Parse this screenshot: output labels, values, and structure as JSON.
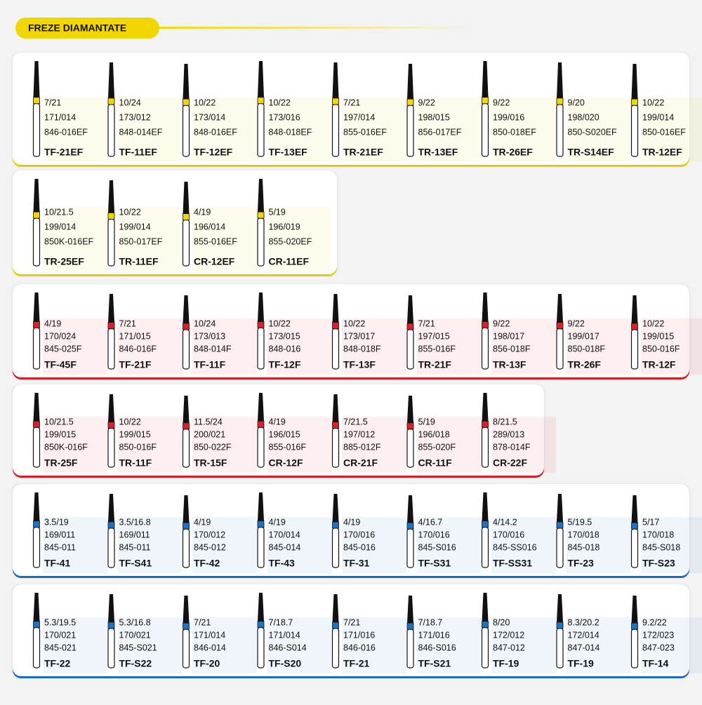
{
  "header": {
    "title": "FREZE DIAMANTATE"
  },
  "groups": [
    {
      "color": "#f2d600",
      "items": [
        [
          "7/21",
          "171/014",
          "846-016EF",
          "TF-21EF"
        ],
        [
          "10/24",
          "173/012",
          "848-014EF",
          "TF-11EF"
        ],
        [
          "10/22",
          "173/014",
          "848-016EF",
          "TF-12EF"
        ],
        [
          "10/22",
          "173/016",
          "848-018EF",
          "TF-13EF"
        ],
        [
          "7/21",
          "197/014",
          "855-016EF",
          "TR-21EF"
        ],
        [
          "9/22",
          "198/015",
          "856-017EF",
          "TR-13EF"
        ],
        [
          "9/22",
          "199/016",
          "850-018EF",
          "TR-26EF"
        ],
        [
          "9/20",
          "198/020",
          "850-S020EF",
          "TR-S14EF"
        ],
        [
          "10/22",
          "199/014",
          "850-016EF",
          "TR-12EF"
        ]
      ]
    },
    {
      "color": "#f2d600",
      "items": [
        [
          "10/21.5",
          "199/014",
          "850K-016EF",
          "TR-25EF"
        ],
        [
          "10/22",
          "199/014",
          "850-017EF",
          "TR-11EF"
        ],
        [
          "4/19",
          "196/014",
          "855-016EF",
          "CR-12EF"
        ],
        [
          "5/19",
          "196/019",
          "855-020EF",
          "CR-11EF"
        ]
      ]
    },
    {
      "color": "#e01e26",
      "items": [
        [
          "4/19",
          "170/024",
          "845-025F",
          "TF-45F"
        ],
        [
          "7/21",
          "171/015",
          "846-016F",
          "TF-21F"
        ],
        [
          "10/24",
          "173/013",
          "848-014F",
          "TF-11F"
        ],
        [
          "10/22",
          "173/015",
          "848-016",
          "TF-12F"
        ],
        [
          "10/22",
          "173/017",
          "848-018F",
          "TF-13F"
        ],
        [
          "7/21",
          "197/015",
          "855-016F",
          "TR-21F"
        ],
        [
          "9/22",
          "198/017",
          "856-018F",
          "TR-13F"
        ],
        [
          "9/22",
          "199/017",
          "850-018F",
          "TR-26F"
        ],
        [
          "10/22",
          "199/015",
          "850-016F",
          "TR-12F"
        ]
      ]
    },
    {
      "color": "#e01e26",
      "items": [
        [
          "10/21.5",
          "199/015",
          "850K-016F",
          "TR-25F"
        ],
        [
          "10/22",
          "199/015",
          "850-016F",
          "TR-11F"
        ],
        [
          "11.5/24",
          "200/021",
          "850-022F",
          "TR-15F"
        ],
        [
          "4/19",
          "196/015",
          "855-016F",
          "CR-12F"
        ],
        [
          "7/21.5",
          "197/012",
          "885-012F",
          "CR-21F"
        ],
        [
          "5/19",
          "196/018",
          "855-020F",
          "CR-11F"
        ],
        [
          "8/21.5",
          "289/013",
          "878-014F",
          "CR-22F"
        ]
      ]
    },
    {
      "color": "#1a73c6",
      "items": [
        [
          "3.5/19",
          "169/011",
          "845-011",
          "TF-41"
        ],
        [
          "3.5/16.8",
          "169/011",
          "845-011",
          "TF-S41"
        ],
        [
          "4/19",
          "170/012",
          "845-012",
          "TF-42"
        ],
        [
          "4/19",
          "170/014",
          "845-014",
          "TF-43"
        ],
        [
          "4/19",
          "170/016",
          "845-016",
          "TF-31"
        ],
        [
          "4/16.7",
          "170/016",
          "845-S016",
          "TF-S31"
        ],
        [
          "4/14.2",
          "170/016",
          "845-SS016",
          "TF-SS31"
        ],
        [
          "5/19.5",
          "170/018",
          "845-018",
          "TF-23"
        ],
        [
          "5/17",
          "170/018",
          "845-S018",
          "TF-S23"
        ]
      ]
    },
    {
      "color": "#1a73c6",
      "items": [
        [
          "5.3/19.5",
          "170/021",
          "845-021",
          "TF-22"
        ],
        [
          "5.3/16.8",
          "170/021",
          "845-S021",
          "TF-S22"
        ],
        [
          "7/21",
          "171/014",
          "846-014",
          "TF-20"
        ],
        [
          "7/18.7",
          "171/014",
          "846-S014",
          "TF-S20"
        ],
        [
          "7/21",
          "171/016",
          "846-016",
          "TF-21"
        ],
        [
          "7/18.7",
          "171/016",
          "846-S016",
          "TF-S21"
        ],
        [
          "8/20",
          "172/012",
          "847-012",
          "TF-19"
        ],
        [
          "8.3/20.2",
          "172/014",
          "847-014",
          "TF-19"
        ],
        [
          "9.2/22",
          "172/023",
          "847-023",
          "TF-14"
        ]
      ]
    }
  ]
}
